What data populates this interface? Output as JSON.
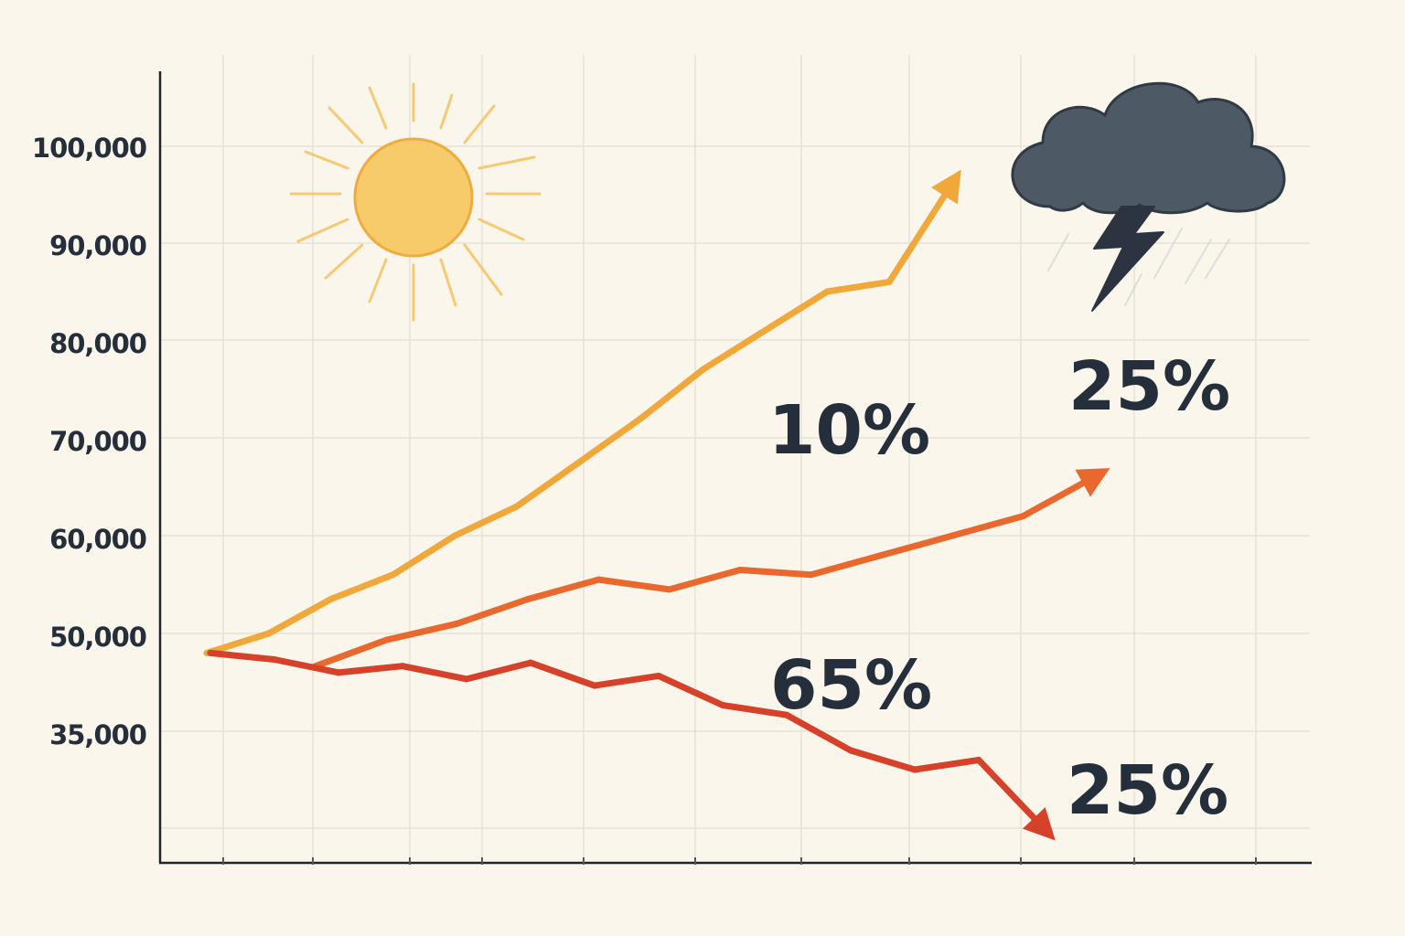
{
  "chart_data": {
    "type": "line",
    "title": "",
    "xlabel": "",
    "ylabel": "",
    "y_tick_labels": [
      "100,000",
      "90,000",
      "80,000",
      "70,000",
      "60,000",
      "50,000",
      "35,000"
    ],
    "x_tick_count": 11,
    "grid": true,
    "series": [
      {
        "color": "#f0a83a",
        "values": [
          47000,
          50000,
          53500,
          56000,
          60000,
          63000,
          67500,
          72000,
          77000,
          81000,
          85000,
          86000,
          96000
        ],
        "arrow": "up"
      },
      {
        "color": "#e8682d",
        "values": [
          45000,
          49000,
          51000,
          53500,
          55500,
          54500,
          56500,
          56000,
          58000,
          60000,
          62000,
          66000
        ],
        "arrow": "up"
      },
      {
        "color": "#d6412a",
        "values": [
          47000,
          46000,
          44000,
          45000,
          43000,
          45500,
          42000,
          43500,
          39000,
          37500,
          33000,
          31000,
          32000,
          25000
        ],
        "arrow": "down"
      }
    ],
    "annotations": {
      "label_10": "10%",
      "label_25_upper": "25%",
      "label_65": "65%",
      "label_25_lower": "25%"
    },
    "icons": [
      "sun-icon",
      "storm-cloud-icon"
    ]
  }
}
